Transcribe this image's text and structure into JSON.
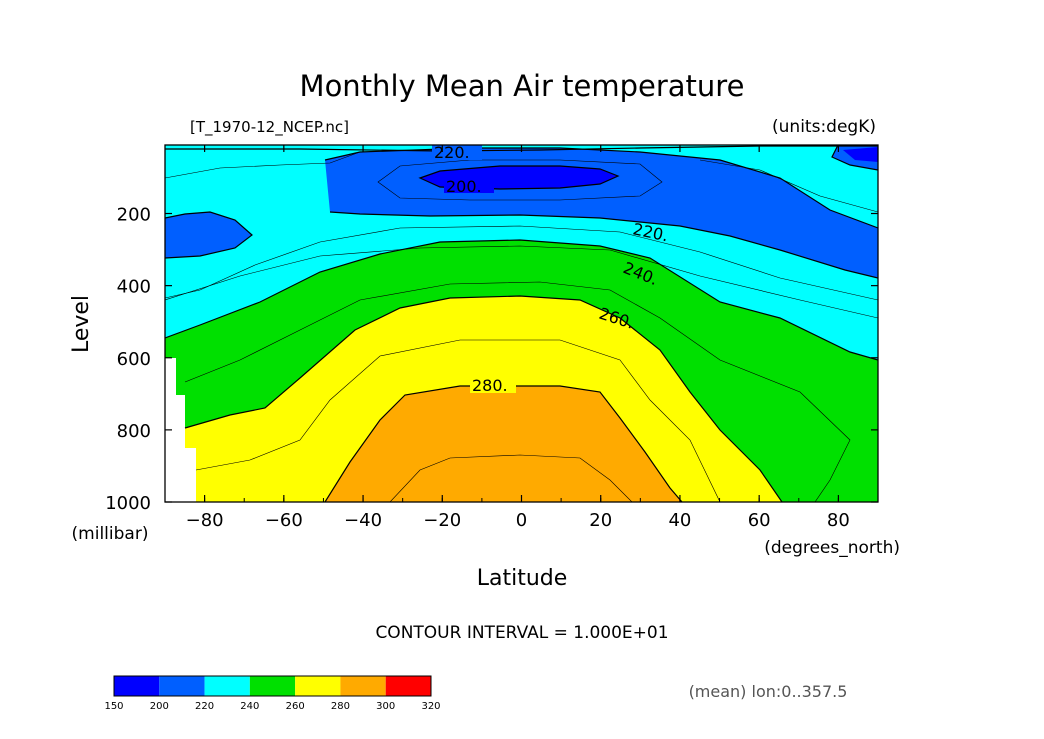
{
  "chart_data": {
    "type": "contour",
    "title": "Monthly Mean Air temperature",
    "file_label": "[T_1970-12_NCEP.nc]",
    "units_label": "(units:degK)",
    "xlabel": "Latitude",
    "x_units": "(degrees_north)",
    "ylabel": "Level",
    "y_units": "(millibar)",
    "xlim": [
      -90,
      90
    ],
    "ylim": [
      10,
      1000
    ],
    "y_inverted": true,
    "x_ticks": [
      "-80",
      "-60",
      "-40",
      "-20",
      "0",
      "20",
      "40",
      "60",
      "80"
    ],
    "y_ticks": [
      "200",
      "400",
      "600",
      "800",
      "1000"
    ],
    "contour_interval_text": "CONTOUR INTERVAL = 1.000E+01",
    "mean_note": "(mean) lon:0..357.5",
    "contour_labels": [
      {
        "text": "220.",
        "lat": -15,
        "level": 20
      },
      {
        "text": "200.",
        "lat": -15,
        "level": 120
      },
      {
        "text": "220.",
        "lat": 30,
        "level": 240
      },
      {
        "text": "240.",
        "lat": 30,
        "level": 350
      },
      {
        "text": "260.",
        "lat": 24,
        "level": 470
      },
      {
        "text": "280.",
        "lat": -8,
        "level": 670
      }
    ],
    "colorbar": {
      "ticks": [
        "150",
        "200",
        "220",
        "240",
        "260",
        "280",
        "300",
        "320"
      ],
      "colors": [
        "#0000ff",
        "#005fff",
        "#00ffff",
        "#00e000",
        "#ffff00",
        "#ffaa00",
        "#ff0000"
      ]
    },
    "fill_colors": {
      "below_200": "#0000ff",
      "200_220": "#005fff",
      "220_240": "#00ffff",
      "240_260": "#00e000",
      "260_280": "#ffff00",
      "280_300": "#ffaa00"
    }
  }
}
